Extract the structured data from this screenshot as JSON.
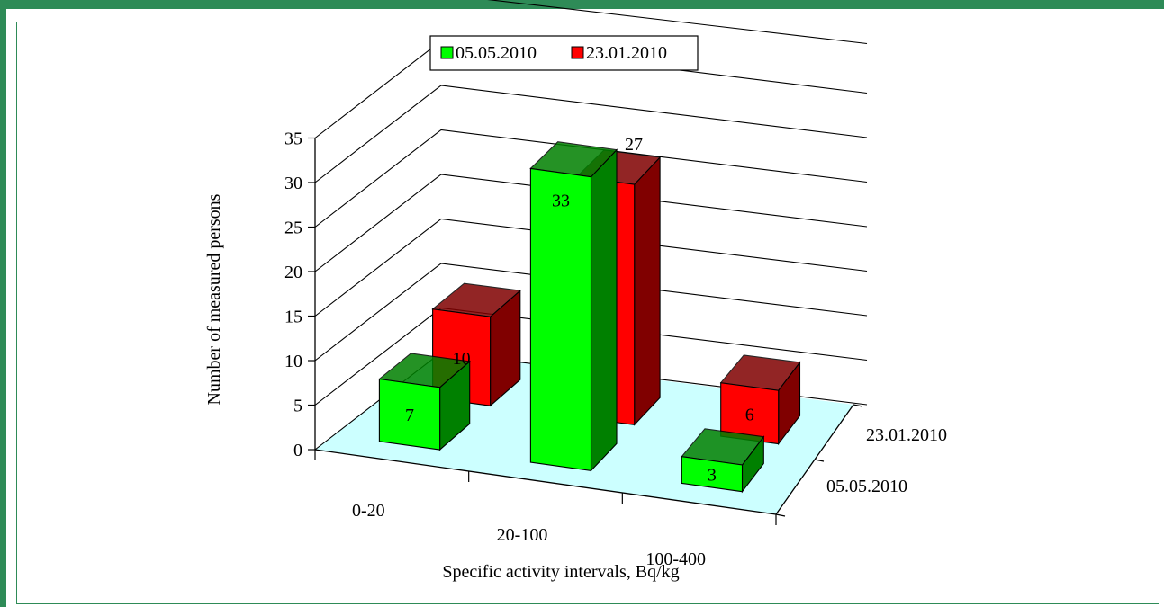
{
  "chart_data": {
    "type": "bar",
    "subtype": "3d-clustered-column",
    "categories": [
      "0-20",
      "20-100",
      "100-400"
    ],
    "series": [
      {
        "name": "05.05.2010",
        "values": [
          7,
          33,
          3
        ],
        "color": "#00ff00",
        "side_color": "#008000"
      },
      {
        "name": "23.01.2010",
        "values": [
          10,
          27,
          6
        ],
        "color": "#ff0000",
        "side_color": "#800000"
      }
    ],
    "depth_labels": [
      "23.01.2010",
      "05.05.2010"
    ],
    "xlabel": "Specific activity intervals, Bq/kg",
    "ylabel": "Number of measured persons",
    "yticks": [
      0,
      5,
      10,
      15,
      20,
      25,
      30,
      35
    ],
    "ylim": [
      0,
      35
    ],
    "floor_color": "#ccffff",
    "frame_color": "#2e8b57",
    "legend_position": "top",
    "grid": true
  }
}
